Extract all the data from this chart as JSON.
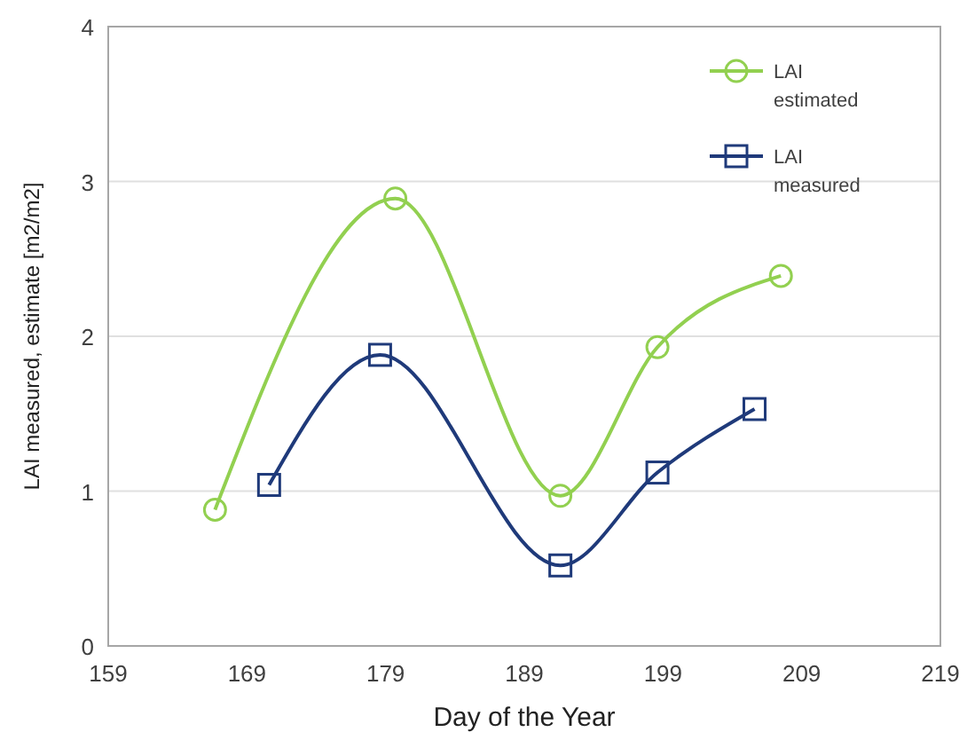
{
  "chart_data": {
    "type": "line",
    "xlabel": "Day of the Year",
    "ylabel": "LAI measured, estimate [m2/m2]",
    "xlim": [
      159,
      219
    ],
    "xticks": [
      159,
      169,
      179,
      189,
      199,
      209,
      219
    ],
    "ylim": [
      0,
      4
    ],
    "yticks": [
      0,
      1,
      2,
      3,
      4
    ],
    "grid": "y",
    "legend": "top right",
    "series": [
      {
        "name": "LAI estimated",
        "color": "#92d050",
        "marker": "circle",
        "x": [
          166.7,
          179.7,
          191.6,
          198.6,
          207.5
        ],
        "values": [
          0.88,
          2.89,
          0.97,
          1.93,
          2.39
        ]
      },
      {
        "name": "LAI measured",
        "color": "#1f3a7a",
        "marker": "square",
        "x": [
          170.6,
          178.6,
          191.6,
          198.6,
          205.6
        ],
        "values": [
          1.04,
          1.88,
          0.52,
          1.12,
          1.53
        ]
      }
    ]
  }
}
